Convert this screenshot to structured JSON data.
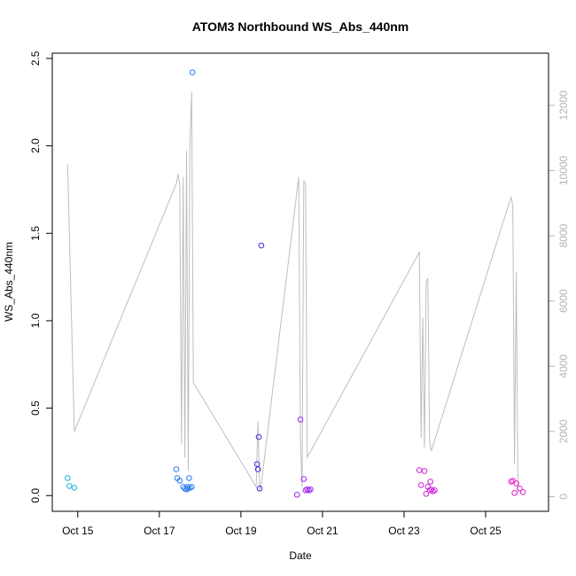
{
  "chart_data": {
    "type": "scatter",
    "title": "ATOM3 Northbound WS_Abs_440nm",
    "xlabel": "Date",
    "ylabel": "WS_Abs_440nm",
    "xlim": [
      "2016-10-14 09:00",
      "2016-10-26 13:00"
    ],
    "ylim": [
      -0.09,
      2.53
    ],
    "y2lim": [
      -450,
      13600
    ],
    "x_ticks": [
      {
        "label": "Oct 15",
        "date": "2016-10-15"
      },
      {
        "label": "Oct 17",
        "date": "2016-10-17"
      },
      {
        "label": "Oct 19",
        "date": "2016-10-19"
      },
      {
        "label": "Oct 21",
        "date": "2016-10-21"
      },
      {
        "label": "Oct 23",
        "date": "2016-10-23"
      },
      {
        "label": "Oct 25",
        "date": "2016-10-25"
      }
    ],
    "y_ticks": [
      "0.0",
      "0.5",
      "1.0",
      "1.5",
      "2.0",
      "2.5"
    ],
    "y2_ticks": [
      "0",
      "2000",
      "4000",
      "6000",
      "8000",
      "10000",
      "12000"
    ],
    "grid": false,
    "series": [
      {
        "type": "points",
        "points": [
          {
            "x": "2016-10-14 18:00",
            "y": 0.1,
            "color": "#1cb5e0"
          },
          {
            "x": "2016-10-14 19:00",
            "y": 0.055,
            "color": "#1cb5e0"
          },
          {
            "x": "2016-10-14 22:00",
            "y": 0.045,
            "color": "#1cb5e0"
          },
          {
            "x": "2016-10-17 10:00",
            "y": 0.15,
            "color": "#2a7bf0"
          },
          {
            "x": "2016-10-17 10:30",
            "y": 0.1,
            "color": "#2a7bf0"
          },
          {
            "x": "2016-10-17 12:00",
            "y": 0.085,
            "color": "#2a7bf0"
          },
          {
            "x": "2016-10-17 14:00",
            "y": 0.05,
            "color": "#2a7bf0"
          },
          {
            "x": "2016-10-17 15:00",
            "y": 0.04,
            "color": "#2a7bf0"
          },
          {
            "x": "2016-10-17 16:00",
            "y": 0.035,
            "color": "#2a7bf0"
          },
          {
            "x": "2016-10-17 16:30",
            "y": 0.05,
            "color": "#2a7bf0"
          },
          {
            "x": "2016-10-17 17:00",
            "y": 0.04,
            "color": "#2a7bf0"
          },
          {
            "x": "2016-10-17 17:30",
            "y": 0.1,
            "color": "#2a7bf0"
          },
          {
            "x": "2016-10-17 18:00",
            "y": 0.045,
            "color": "#2a7bf0"
          },
          {
            "x": "2016-10-17 19:00",
            "y": 0.05,
            "color": "#2a7bf0"
          },
          {
            "x": "2016-10-17 19:30",
            "y": 2.42,
            "color": "#2a7bf0"
          },
          {
            "x": "2016-10-19 09:30",
            "y": 0.18,
            "color": "#3a2ce0"
          },
          {
            "x": "2016-10-19 10:00",
            "y": 0.15,
            "color": "#3a2ce0"
          },
          {
            "x": "2016-10-19 10:30",
            "y": 0.335,
            "color": "#3a2ce0"
          },
          {
            "x": "2016-10-19 11:00",
            "y": 0.04,
            "color": "#3a2ce0"
          },
          {
            "x": "2016-10-19 12:00",
            "y": 1.43,
            "color": "#3a2ce0"
          },
          {
            "x": "2016-10-20 09:00",
            "y": 0.005,
            "color": "#a020f0"
          },
          {
            "x": "2016-10-20 11:00",
            "y": 0.435,
            "color": "#a020f0"
          },
          {
            "x": "2016-10-20 13:00",
            "y": 0.095,
            "color": "#a020f0"
          },
          {
            "x": "2016-10-20 14:00",
            "y": 0.03,
            "color": "#a020f0"
          },
          {
            "x": "2016-10-20 15:00",
            "y": 0.035,
            "color": "#a020f0"
          },
          {
            "x": "2016-10-20 16:00",
            "y": 0.03,
            "color": "#a020f0"
          },
          {
            "x": "2016-10-20 17:00",
            "y": 0.035,
            "color": "#a020f0"
          },
          {
            "x": "2016-10-23 09:00",
            "y": 0.145,
            "color": "#d21edb"
          },
          {
            "x": "2016-10-23 10:00",
            "y": 0.06,
            "color": "#d21edb"
          },
          {
            "x": "2016-10-23 12:00",
            "y": 0.14,
            "color": "#d21edb"
          },
          {
            "x": "2016-10-23 13:00",
            "y": 0.01,
            "color": "#d21edb"
          },
          {
            "x": "2016-10-23 14:00",
            "y": 0.05,
            "color": "#d21edb"
          },
          {
            "x": "2016-10-23 15:00",
            "y": 0.03,
            "color": "#d21edb"
          },
          {
            "x": "2016-10-23 15:30",
            "y": 0.08,
            "color": "#d21edb"
          },
          {
            "x": "2016-10-23 16:00",
            "y": 0.035,
            "color": "#d21edb"
          },
          {
            "x": "2016-10-23 17:00",
            "y": 0.025,
            "color": "#d21edb"
          },
          {
            "x": "2016-10-23 18:00",
            "y": 0.03,
            "color": "#d21edb"
          },
          {
            "x": "2016-10-25 15:00",
            "y": 0.08,
            "color": "#e61ec8"
          },
          {
            "x": "2016-10-25 16:00",
            "y": 0.085,
            "color": "#e61ec8"
          },
          {
            "x": "2016-10-25 17:00",
            "y": 0.015,
            "color": "#e61ec8"
          },
          {
            "x": "2016-10-25 18:00",
            "y": 0.07,
            "color": "#e61ec8"
          },
          {
            "x": "2016-10-25 20:00",
            "y": 0.04,
            "color": "#e61ec8"
          },
          {
            "x": "2016-10-25 22:00",
            "y": 0.02,
            "color": "#e61ec8"
          }
        ]
      },
      {
        "type": "line",
        "axis": "right",
        "color": "#bebebe",
        "points": [
          [
            "2016-10-14 18:00",
            10200
          ],
          [
            "2016-10-14 22:00",
            2000
          ],
          [
            "2016-10-17 10:00",
            9600
          ],
          [
            "2016-10-17 11:00",
            9900
          ],
          [
            "2016-10-17 12:00",
            9600
          ],
          [
            "2016-10-17 13:00",
            1600
          ],
          [
            "2016-10-17 14:00",
            9800
          ],
          [
            "2016-10-17 15:00",
            1200
          ],
          [
            "2016-10-17 16:00",
            10600
          ],
          [
            "2016-10-17 17:00",
            800
          ],
          [
            "2016-10-17 18:00",
            10800
          ],
          [
            "2016-10-17 19:00",
            12400
          ],
          [
            "2016-10-17 20:00",
            3500
          ],
          [
            "2016-10-19 09:00",
            300
          ],
          [
            "2016-10-19 10:00",
            2300
          ],
          [
            "2016-10-19 11:00",
            200
          ],
          [
            "2016-10-19 12:00",
            400
          ],
          [
            "2016-10-20 10:00",
            9800
          ],
          [
            "2016-10-20 11:00",
            1800
          ],
          [
            "2016-10-20 12:00",
            300
          ],
          [
            "2016-10-20 13:00",
            9700
          ],
          [
            "2016-10-20 14:00",
            9600
          ],
          [
            "2016-10-20 15:00",
            1200
          ],
          [
            "2016-10-23 09:00",
            7500
          ],
          [
            "2016-10-23 10:00",
            1800
          ],
          [
            "2016-10-23 11:00",
            5500
          ],
          [
            "2016-10-23 12:00",
            1500
          ],
          [
            "2016-10-23 13:00",
            6600
          ],
          [
            "2016-10-23 14:00",
            6700
          ],
          [
            "2016-10-23 15:00",
            1700
          ],
          [
            "2016-10-23 16:00",
            1400
          ],
          [
            "2016-10-25 15:00",
            9200
          ],
          [
            "2016-10-25 16:00",
            8900
          ],
          [
            "2016-10-25 17:00",
            1000
          ],
          [
            "2016-10-25 18:00",
            6900
          ],
          [
            "2016-10-25 19:00",
            100
          ]
        ]
      }
    ]
  }
}
